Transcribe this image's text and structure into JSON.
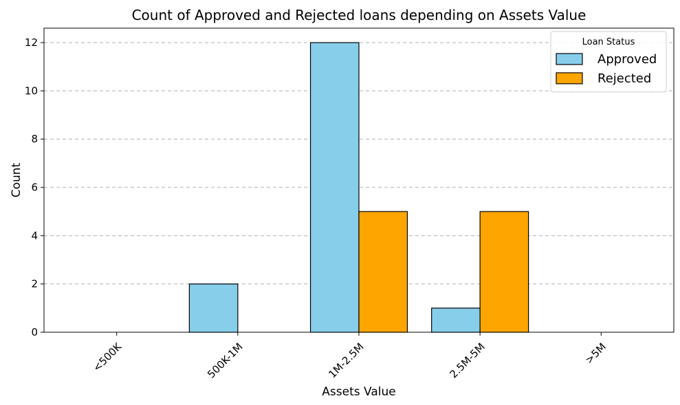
{
  "chart_data": {
    "type": "bar",
    "title": "Count of Approved and Rejected loans depending on Assets Value",
    "xlabel": "Assets Value",
    "ylabel": "Count",
    "categories": [
      "<500K",
      "500K-1M",
      "1M-2.5M",
      "2.5M-5M",
      ">5M"
    ],
    "series": [
      {
        "name": "Approved",
        "values": [
          0,
          2,
          12,
          1,
          0
        ],
        "color": "#87ceeb"
      },
      {
        "name": "Rejected",
        "values": [
          0,
          0,
          5,
          5,
          0
        ],
        "color": "#ffa500"
      }
    ],
    "ylim": [
      0,
      12.6
    ],
    "yticks": [
      0,
      2,
      4,
      6,
      8,
      10,
      12
    ],
    "grid": "y-dashed",
    "legend": {
      "title": "Loan Status",
      "placement": "top-right"
    }
  }
}
